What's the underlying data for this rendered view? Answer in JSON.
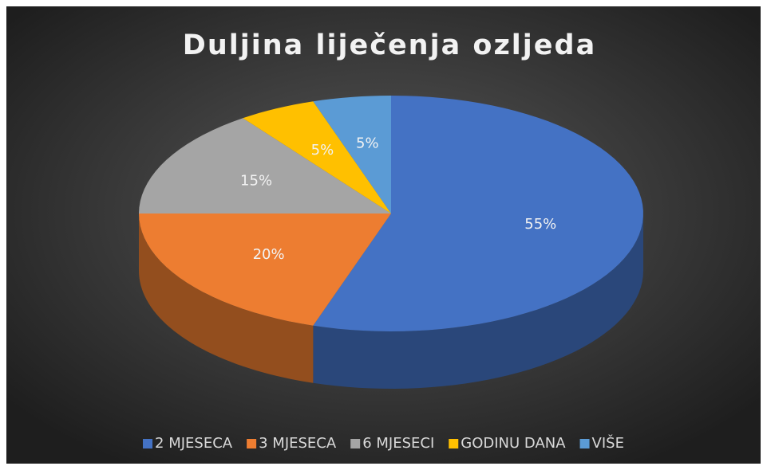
{
  "chart_data": {
    "type": "pie",
    "title": "Duljina liječenja ozljeda",
    "categories": [
      "2 MJESECA",
      "3 MJESECA",
      "6 MJESECI",
      "GODINU DANA",
      "VIŠE"
    ],
    "values": [
      55,
      20,
      15,
      5,
      5
    ],
    "value_labels": [
      "55%",
      "20%",
      "15%",
      "5%",
      "5%"
    ],
    "colors": [
      "#4472c4",
      "#ed7d31",
      "#a5a5a5",
      "#ffc000",
      "#5b9bd5"
    ],
    "legend": "bottom"
  }
}
